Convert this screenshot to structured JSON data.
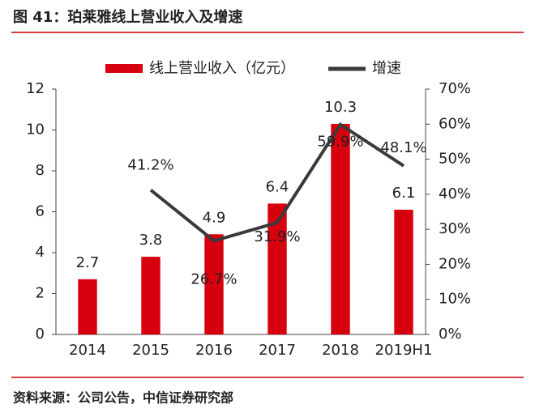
{
  "header": {
    "title": "图 41：珀莱雅线上营业收入及增速"
  },
  "chart_data": {
    "type": "bar_line",
    "categories": [
      "2014",
      "2015",
      "2016",
      "2017",
      "2018",
      "2019H1"
    ],
    "series": [
      {
        "name": "线上营业收入（亿元）",
        "type": "bar",
        "color": "#d7000f",
        "values": [
          2.7,
          3.8,
          4.9,
          6.4,
          10.3,
          6.1
        ]
      },
      {
        "name": "增速",
        "type": "line",
        "axis": "y2",
        "color": "#3a3a3a",
        "values": [
          null,
          41.2,
          26.7,
          31.9,
          59.9,
          48.1
        ],
        "value_labels": [
          null,
          "41.2%",
          "26.7%",
          "31.9%",
          "59.9%",
          "48.1%"
        ]
      }
    ],
    "ylim": [
      0,
      12
    ],
    "yticks": [
      0,
      2,
      4,
      6,
      8,
      10,
      12
    ],
    "y2lim": [
      0,
      70
    ],
    "y2ticks": [
      {
        "value": 0,
        "label": "0%"
      },
      {
        "value": 10,
        "label": "10%"
      },
      {
        "value": 20,
        "label": "20%"
      },
      {
        "value": 30,
        "label": "30%"
      },
      {
        "value": 40,
        "label": "40%"
      },
      {
        "value": 50,
        "label": "50%"
      },
      {
        "value": 60,
        "label": "60%"
      },
      {
        "value": 70,
        "label": "70%"
      }
    ],
    "legend": "top"
  },
  "footer": {
    "source": "资料来源：公司公告，中信证券研究部"
  }
}
